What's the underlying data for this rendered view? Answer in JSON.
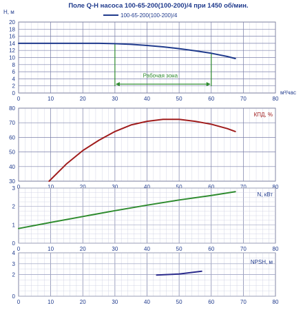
{
  "chart_data": [
    {
      "type": "line",
      "title": "Поле Q-H насоса 100-65-200(100-200)/4 при 1450 об/мин.",
      "ylabel": "H, м",
      "xlabel": "м³/час",
      "legend": "100-65-200(100-200)/4",
      "legend_placement": "top",
      "xlim": [
        0,
        80
      ],
      "ylim": [
        0,
        20
      ],
      "x_ticks": [
        0,
        10,
        20,
        30,
        40,
        50,
        60,
        70,
        80
      ],
      "y_ticks": [
        0,
        2,
        4,
        6,
        8,
        10,
        12,
        14,
        16,
        18,
        20
      ],
      "grid": true,
      "series": [
        {
          "name": "100-65-200(100-200)/4",
          "color": "#1f3a8c",
          "x": [
            0,
            10,
            20,
            25,
            30,
            35,
            40,
            45,
            50,
            55,
            60,
            65,
            67.5
          ],
          "y": [
            14.0,
            14.0,
            14.0,
            14.0,
            13.9,
            13.7,
            13.4,
            13.0,
            12.5,
            11.9,
            11.2,
            10.3,
            9.7
          ]
        }
      ],
      "annotation": {
        "label": "Рабочая зона",
        "x_from": 30,
        "x_to": 60,
        "color": "#2e8b2e"
      }
    },
    {
      "type": "line",
      "ylabel": "КПД, %",
      "xlim": [
        0,
        80
      ],
      "ylim": [
        30,
        80
      ],
      "x_ticks": [
        0,
        10,
        20,
        30,
        40,
        50,
        60,
        70,
        80
      ],
      "y_ticks": [
        30,
        40,
        50,
        60,
        70,
        80
      ],
      "grid": true,
      "series": [
        {
          "color": "#a01c1c",
          "x": [
            9.5,
            15,
            20,
            25,
            30,
            35,
            40,
            45,
            50,
            55,
            60,
            65,
            67.5
          ],
          "y": [
            30,
            42,
            51,
            58,
            64,
            68.5,
            71,
            72.3,
            72.3,
            71,
            69,
            66,
            64
          ]
        }
      ]
    },
    {
      "type": "line",
      "ylabel": "N, кВт",
      "xlim": [
        0,
        80
      ],
      "ylim": [
        0,
        3
      ],
      "x_ticks": [
        0,
        10,
        20,
        30,
        40,
        50,
        60,
        70,
        80
      ],
      "y_ticks": [
        0,
        1,
        2,
        3
      ],
      "grid": true,
      "series": [
        {
          "color": "#2e8b2e",
          "x": [
            0,
            10,
            20,
            30,
            40,
            50,
            60,
            67.5
          ],
          "y": [
            0.8,
            1.13,
            1.45,
            1.77,
            2.07,
            2.35,
            2.6,
            2.8
          ]
        }
      ]
    },
    {
      "type": "line",
      "ylabel": "NPSH, м",
      "xlim": [
        0,
        80
      ],
      "ylim": [
        0,
        4
      ],
      "x_ticks": [
        0,
        10,
        20,
        30,
        40,
        50,
        60,
        70,
        80
      ],
      "y_ticks": [
        0,
        2,
        3,
        4
      ],
      "grid": true,
      "series": [
        {
          "color": "#2a2a8c",
          "x": [
            43,
            50,
            57
          ],
          "y": [
            1.95,
            2.05,
            2.3
          ]
        }
      ]
    }
  ]
}
